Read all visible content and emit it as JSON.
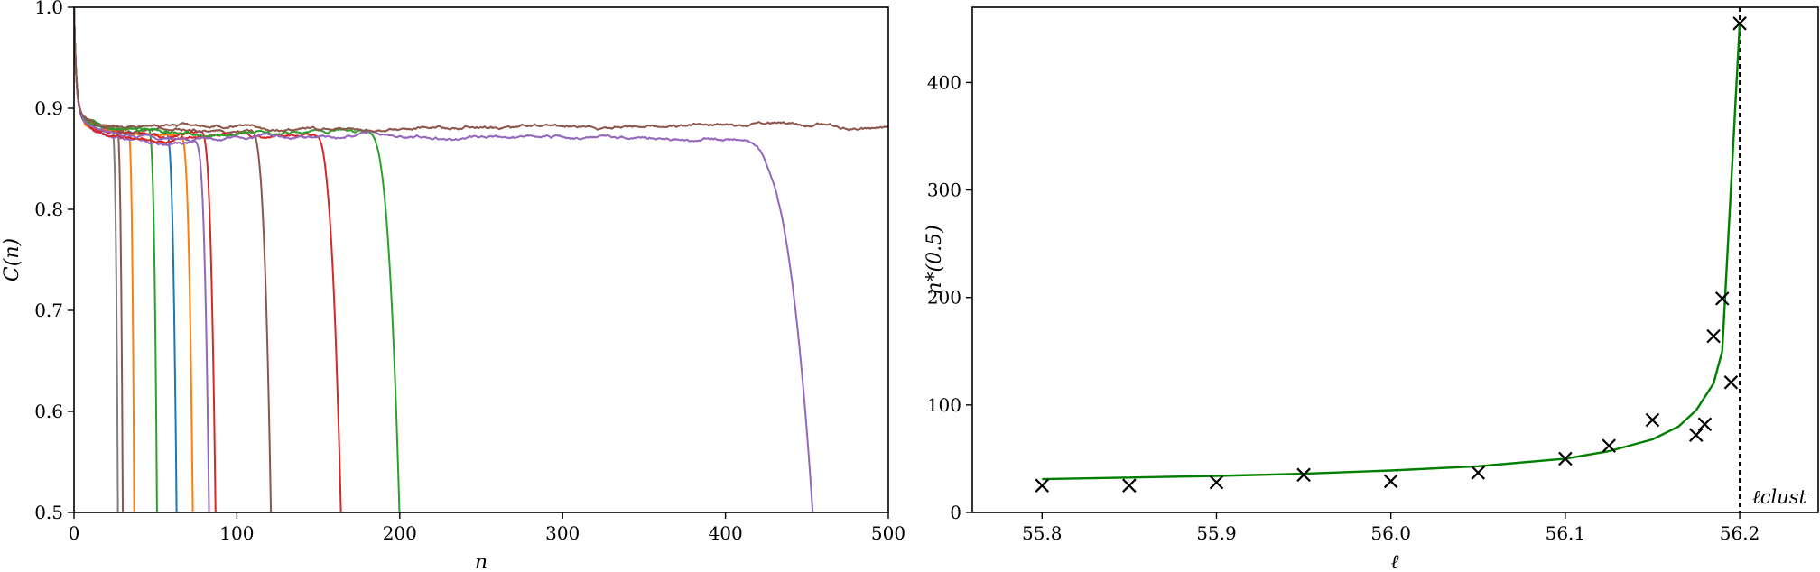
{
  "chart_data": [
    {
      "type": "line",
      "xlabel": "n",
      "ylabel": "C(n)",
      "xlim": [
        0,
        500
      ],
      "ylim": [
        0.5,
        1.0
      ],
      "xticks": [
        0,
        100,
        200,
        300,
        400,
        500
      ],
      "yticks": [
        0.5,
        0.6,
        0.7,
        0.8,
        0.9,
        1.0
      ],
      "xtick_labels": [
        "0",
        "100",
        "200",
        "300",
        "400",
        "500"
      ],
      "ytick_labels": [
        "0.5",
        "0.6",
        "0.7",
        "0.8",
        "0.9",
        "1.0"
      ],
      "grid": false,
      "series": [
        {
          "color": "#7f7f7f",
          "plateau": 0.878,
          "drop_at": 27
        },
        {
          "color": "#8c564b",
          "plateau": 0.879,
          "drop_at": 30
        },
        {
          "color": "#ff7f0e",
          "plateau": 0.876,
          "drop_at": 37
        },
        {
          "color": "#2ca02c",
          "plateau": 0.874,
          "drop_at": 51
        },
        {
          "color": "#1f77b4",
          "plateau": 0.871,
          "drop_at": 63
        },
        {
          "color": "#ff7f0e",
          "plateau": 0.872,
          "drop_at": 73
        },
        {
          "color": "#9467bd",
          "plateau": 0.868,
          "drop_at": 83
        },
        {
          "color": "#d62728",
          "plateau": 0.873,
          "drop_at": 87
        },
        {
          "color": "#8c564b",
          "plateau": 0.876,
          "drop_at": 121
        },
        {
          "color": "#d62728",
          "plateau": 0.87,
          "drop_at": 164
        },
        {
          "color": "#2ca02c",
          "plateau": 0.874,
          "drop_at": 200
        },
        {
          "color": "#9467bd",
          "plateau": 0.87,
          "drop_at": 454
        },
        {
          "color": "#8c564b",
          "plateau": 0.882,
          "drop_at": null
        }
      ]
    },
    {
      "type": "scatter",
      "xlabel": "ℓ",
      "ylabel": "n*(0.5)",
      "xlim": [
        55.76,
        56.245
      ],
      "ylim": [
        0,
        470
      ],
      "xticks": [
        55.8,
        55.9,
        56.0,
        56.1,
        56.2
      ],
      "yticks": [
        0,
        100,
        200,
        300,
        400
      ],
      "xtick_labels": [
        "55.8",
        "55.9",
        "56.0",
        "56.1",
        "56.2"
      ],
      "ytick_labels": [
        "0",
        "100",
        "200",
        "300",
        "400"
      ],
      "grid": false,
      "scatter_points": {
        "marker": "x",
        "color": "#000000",
        "x": [
          55.8,
          55.85,
          55.9,
          55.95,
          56.0,
          56.05,
          56.1,
          56.125,
          56.15,
          56.175,
          56.18,
          56.185,
          56.19,
          56.195,
          56.2
        ],
        "y": [
          25,
          25,
          28,
          35,
          29,
          37,
          50,
          62,
          86,
          72,
          82,
          164,
          199,
          121,
          455
        ]
      },
      "fit_line": {
        "color": "#008000",
        "x": [
          55.8,
          55.85,
          55.9,
          55.95,
          56.0,
          56.05,
          56.1,
          56.125,
          56.15,
          56.165,
          56.175,
          56.185,
          56.19,
          56.2
        ],
        "y": [
          31,
          32.5,
          34,
          36,
          39,
          43,
          50,
          57,
          68,
          80,
          95,
          120,
          150,
          455
        ]
      },
      "vline": {
        "x": 56.2,
        "label": "ℓclust"
      }
    }
  ]
}
